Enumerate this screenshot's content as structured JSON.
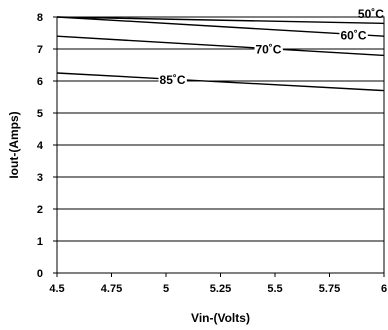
{
  "chart_data": {
    "type": "line",
    "xlabel": "Vin-(Volts)",
    "ylabel": "Iout-(Amps)",
    "xlim": [
      4.5,
      6
    ],
    "ylim": [
      0,
      8
    ],
    "x_ticks": [
      "4.5",
      "4.75",
      "5",
      "5.25",
      "5.5",
      "5.75",
      "6"
    ],
    "y_ticks": [
      "0",
      "1",
      "2",
      "3",
      "4",
      "5",
      "6",
      "7",
      "8"
    ],
    "grid": true,
    "series": [
      {
        "name": "50˚C",
        "x": [
          4.5,
          6
        ],
        "y": [
          8.0,
          7.8
        ]
      },
      {
        "name": "60˚C",
        "x": [
          4.5,
          6
        ],
        "y": [
          8.0,
          7.4
        ]
      },
      {
        "name": "70˚C",
        "x": [
          4.5,
          6
        ],
        "y": [
          7.4,
          6.8
        ]
      },
      {
        "name": "85˚C",
        "x": [
          4.5,
          6
        ],
        "y": [
          6.25,
          5.7
        ]
      }
    ]
  }
}
